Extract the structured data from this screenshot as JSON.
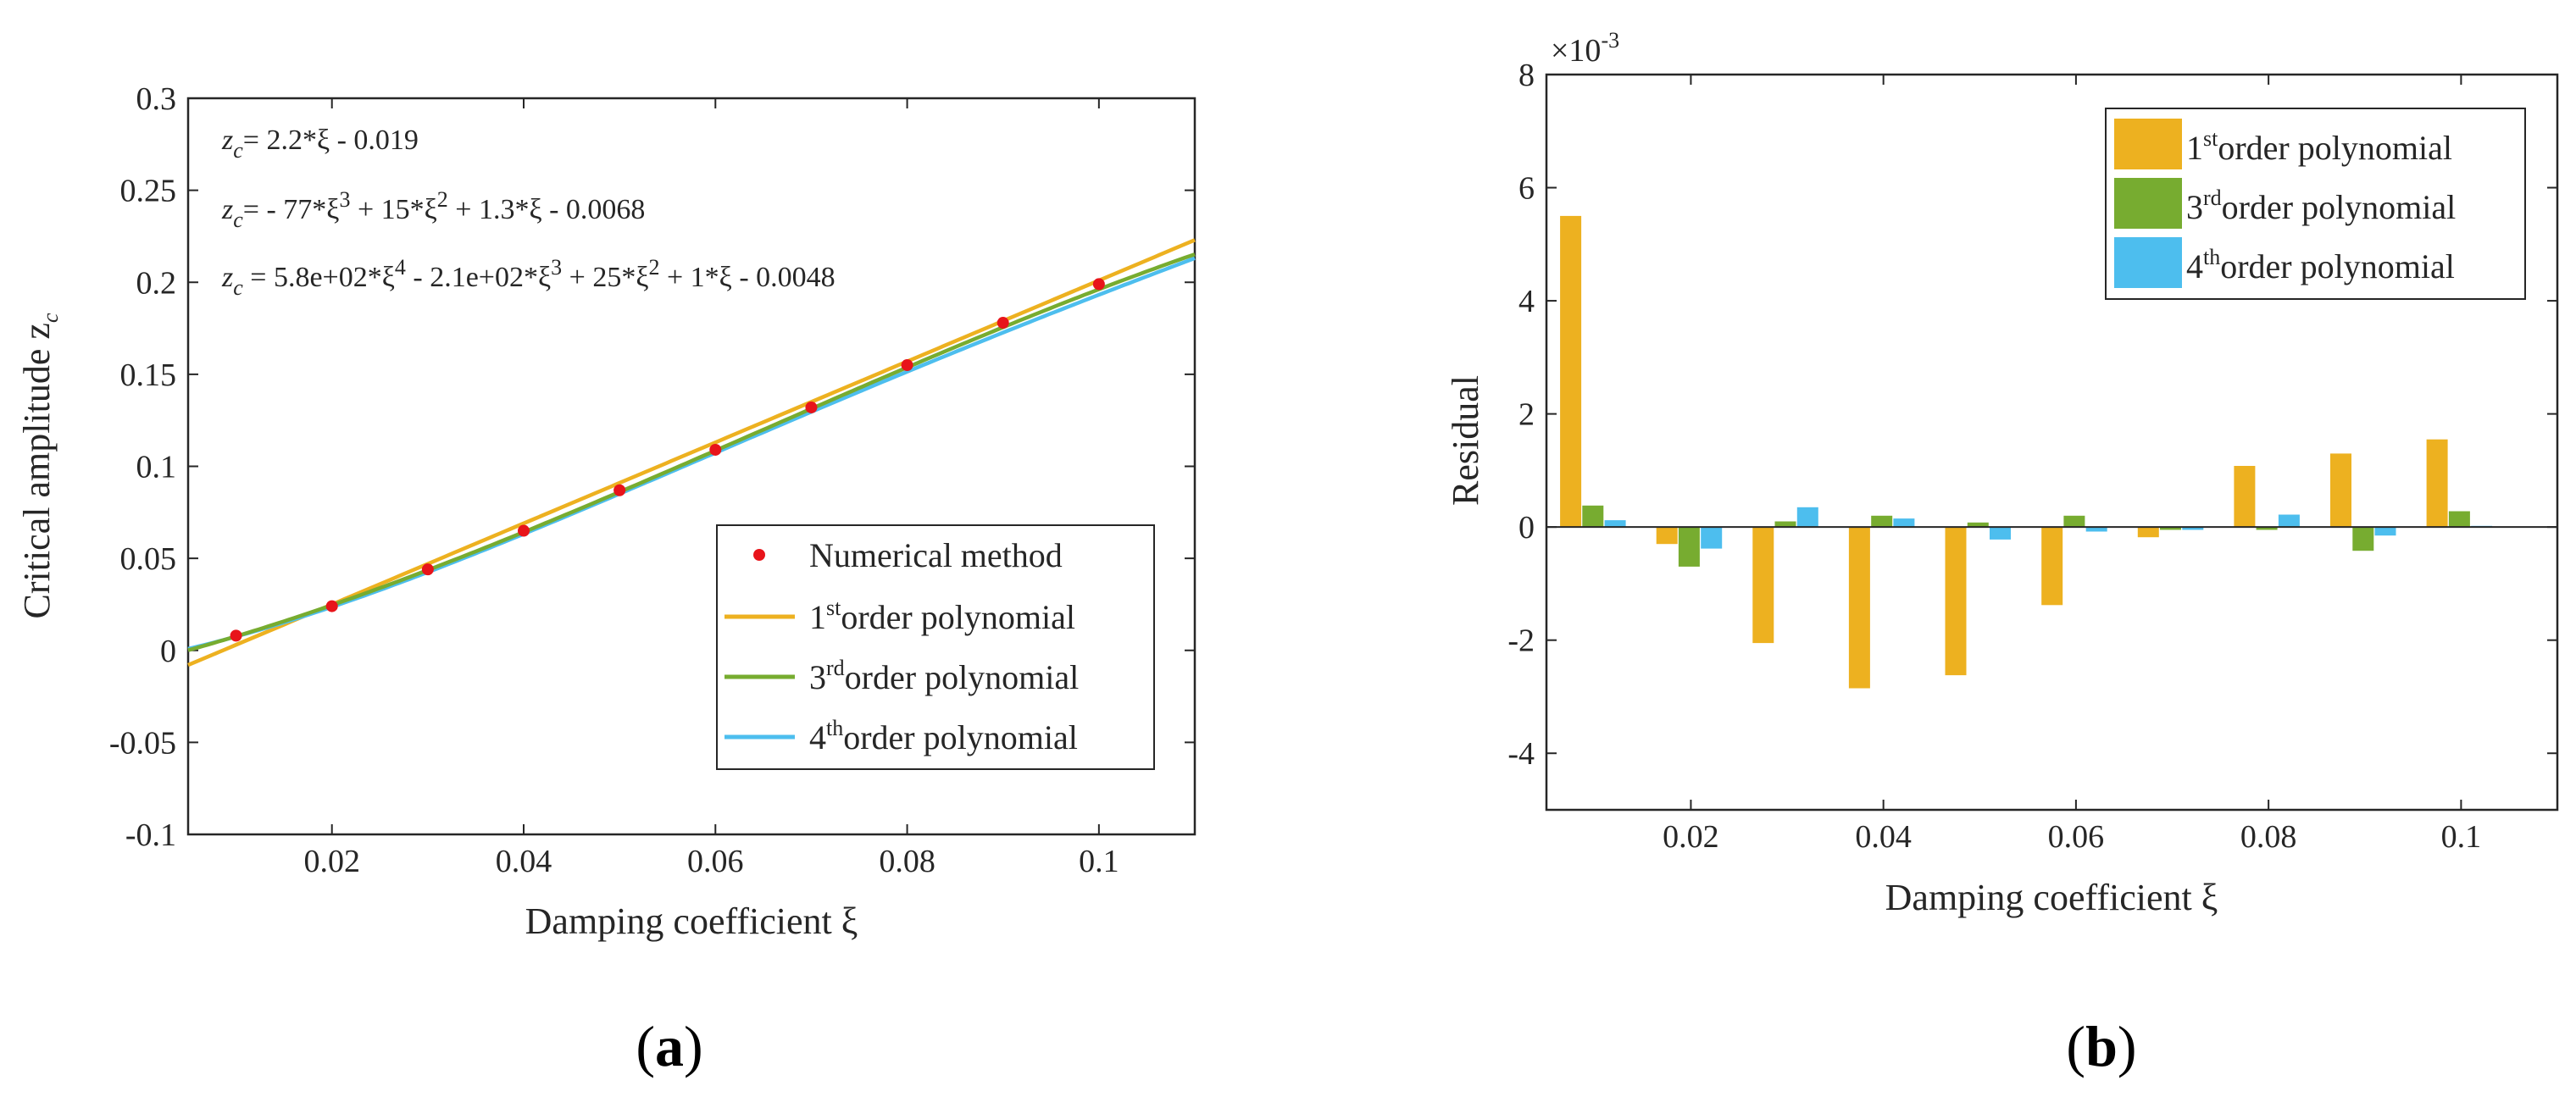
{
  "colors": {
    "numerical": "#e8141a",
    "first": "#edb120",
    "third": "#77ac30",
    "fourth": "#4dbeee",
    "axis": "#262626"
  },
  "chart_data": [
    {
      "panel": "a",
      "panel_label": {
        "open": "(",
        "letter": "a",
        "close": ")"
      },
      "type": "line",
      "xlabel": "Damping coefficient ξ",
      "ylabel": "Critical amplitude z",
      "ylabel_sub": "c",
      "xlim": [
        0.005,
        0.11
      ],
      "ylim": [
        -0.1,
        0.3
      ],
      "xticks": [
        0.02,
        0.04,
        0.06,
        0.08,
        0.1
      ],
      "xtick_labels": [
        "0.02",
        "0.04",
        "0.06",
        "0.08",
        "0.1"
      ],
      "yticks": [
        -0.1,
        -0.05,
        0,
        0.05,
        0.1,
        0.15,
        0.2,
        0.25,
        0.3
      ],
      "ytick_labels": [
        "-0.1",
        "-0.05",
        "0",
        "0.05",
        "0.1",
        "0.15",
        "0.2",
        "0.25",
        "0.3"
      ],
      "equations": {
        "eq1": {
          "z": "z",
          "sub": "c",
          "part1": "= 2.2*ξ - 0.019"
        },
        "eq2": {
          "z": "z",
          "sub": "c",
          "part1": "= - 77*ξ",
          "sup1": "3",
          "part2": " + 15*ξ",
          "sup2": "2",
          "part3": " + 1.3*ξ - 0.0068"
        },
        "eq3": {
          "z": "z",
          "sub": "c",
          "part1": " = 5.8e+02*ξ",
          "sup1": "4",
          "part2": " - 2.1e+02*ξ",
          "sup2": "3",
          "part3": " + 25*ξ",
          "sup3": "2",
          "part4": " + 1*ξ - 0.0048"
        }
      },
      "legend": {
        "position": "lower-right",
        "numerical": "Numerical method",
        "first": {
          "pre": "1",
          "sup": "st",
          "post": "order polynomial"
        },
        "third": {
          "pre": "3",
          "sup": "rd",
          "post": "order polynomial"
        },
        "fourth": {
          "pre": "4",
          "sup": "th",
          "post": "order polynomial"
        }
      },
      "numerical_points": {
        "x": [
          0.01,
          0.02,
          0.03,
          0.04,
          0.05,
          0.06,
          0.07,
          0.08,
          0.09,
          0.1
        ],
        "y": [
          0.008,
          0.024,
          0.044,
          0.065,
          0.087,
          0.109,
          0.132,
          0.155,
          0.178,
          0.199
        ]
      },
      "fits": {
        "first": [
          -0.019,
          2.2
        ],
        "third": [
          -0.0068,
          1.3,
          15,
          -77
        ],
        "fourth": [
          -0.0048,
          1,
          25,
          -210,
          580
        ]
      }
    },
    {
      "panel": "b",
      "panel_label": {
        "open": "(",
        "letter": "b",
        "close": ")"
      },
      "type": "bar",
      "xlabel": "Damping coefficient ξ",
      "ylabel": "Residual",
      "scale_label": {
        "base": "×10",
        "exp": "-3"
      },
      "xlim": [
        0.005,
        0.11
      ],
      "ylim": [
        -5,
        8
      ],
      "xticks": [
        0.02,
        0.04,
        0.06,
        0.08,
        0.1
      ],
      "xtick_labels": [
        "0.02",
        "0.04",
        "0.06",
        "0.08",
        "0.1"
      ],
      "yticks": [
        -4,
        -2,
        0,
        2,
        4,
        6,
        8
      ],
      "ytick_labels": [
        "-4",
        "-2",
        "0",
        "2",
        "4",
        "6",
        "8"
      ],
      "legend": {
        "position": "top-right",
        "first": {
          "pre": "1",
          "sup": "st",
          "post": "order polynomial"
        },
        "third": {
          "pre": "3",
          "sup": "rd",
          "post": "order polynomial"
        },
        "fourth": {
          "pre": "4",
          "sup": "th",
          "post": "order polynomial"
        }
      },
      "categories": [
        0.01,
        0.02,
        0.03,
        0.04,
        0.05,
        0.06,
        0.07,
        0.08,
        0.09,
        0.1
      ],
      "series": [
        {
          "name": "1st order polynomial",
          "key": "first",
          "values": [
            5.5,
            -0.3,
            -2.05,
            -2.85,
            -2.62,
            -1.38,
            -0.18,
            1.08,
            1.3,
            1.55
          ]
        },
        {
          "name": "3rd order polynomial",
          "key": "third",
          "values": [
            0.38,
            -0.7,
            0.1,
            0.2,
            0.08,
            0.2,
            -0.05,
            -0.05,
            -0.42,
            0.28
          ]
        },
        {
          "name": "4th order polynomial",
          "key": "fourth",
          "values": [
            0.12,
            -0.38,
            0.35,
            0.15,
            -0.22,
            -0.08,
            -0.05,
            0.22,
            -0.15,
            0.02
          ]
        }
      ]
    }
  ]
}
